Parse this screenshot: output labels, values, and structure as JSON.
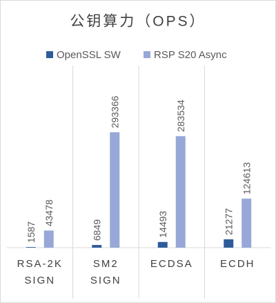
{
  "chart_data": {
    "type": "bar",
    "title": "公钥算力（OPS）",
    "categories": [
      "RSA-2K SIGN",
      "SM2 SIGN",
      "ECDSA",
      "ECDH"
    ],
    "series": [
      {
        "name": "OpenSSL SW",
        "color": "#2e5c9a",
        "values": [
          1587,
          6849,
          14493,
          21277
        ]
      },
      {
        "name": "RSP S20 Async",
        "color": "#97a8d8",
        "values": [
          43478,
          293366,
          283534,
          124613
        ]
      }
    ],
    "ylim": [
      0,
      350000
    ],
    "legend": "top"
  }
}
